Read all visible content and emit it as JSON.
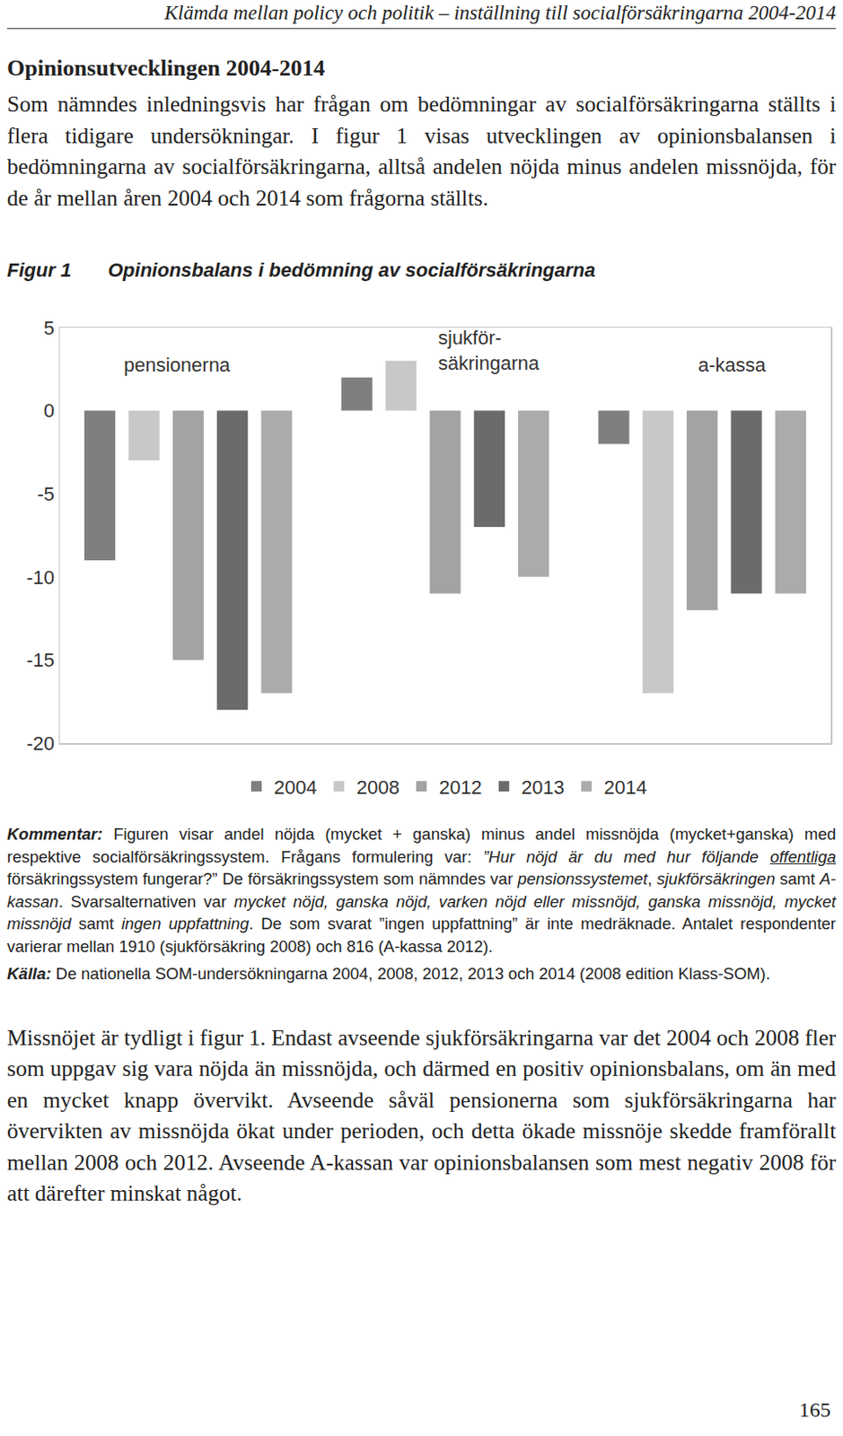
{
  "header": "Klämda mellan policy och politik – inställning till socialförsäkringarna 2004-2014",
  "heading": "Opinionsutvecklingen 2004-2014",
  "intro": "Som nämndes inledningsvis har frågan om bedömningar av socialförsäkringarna ställts i flera tidigare undersökningar. I figur 1 visas utvecklingen av opinionsbalansen i bedömningarna av socialförsäkringarna, alltså andelen nöjda minus andelen missnöjda, för de år mellan åren 2004 och 2014 som frågorna ställts.",
  "figure_label": "Figur 1",
  "chart_data": {
    "type": "bar",
    "title": "Opinionsbalans i bedömning av socialförsäkringarna",
    "categories": [
      "pensionerna",
      "sjukför-\nsäkringarna",
      "a-kassa"
    ],
    "series": [
      {
        "name": "2004",
        "color": "#7f7f7f",
        "values": [
          -9,
          2,
          -2
        ]
      },
      {
        "name": "2008",
        "color": "#c8c8c8",
        "values": [
          -3,
          3,
          -17
        ]
      },
      {
        "name": "2012",
        "color": "#a3a3a3",
        "values": [
          -15,
          -11,
          -12
        ]
      },
      {
        "name": "2013",
        "color": "#6b6b6b",
        "values": [
          -18,
          -7,
          -11
        ]
      },
      {
        "name": "2014",
        "color": "#ababab",
        "values": [
          -17,
          -10,
          -11
        ]
      }
    ],
    "ylim": [
      -20,
      5
    ],
    "yticks": [
      -20,
      -15,
      -10,
      -5,
      0,
      5
    ],
    "grid": false,
    "legend": "bottom",
    "tick_labels": "y"
  },
  "comment": [
    {
      "text": "Kommentar:",
      "style": "bold-italic"
    },
    {
      "text": " Figuren visar andel nöjda (mycket + ganska) minus andel missnöjda (mycket+ganska) med respektive socialförsäkringssystem. Frågans formulering var: ",
      "style": "plain"
    },
    {
      "text": "”Hur nöjd är du med hur följande ",
      "style": "italic"
    },
    {
      "text": "offentliga",
      "style": "italic-underline"
    },
    {
      "text": " försäkringssystem fungerar?”",
      "style": "plain"
    },
    {
      "text": " De försäkringssystem som nämndes var ",
      "style": "plain"
    },
    {
      "text": "pensionssystemet",
      "style": "italic"
    },
    {
      "text": ", ",
      "style": "plain"
    },
    {
      "text": "sjukförsäkringen",
      "style": "italic"
    },
    {
      "text": " samt ",
      "style": "plain"
    },
    {
      "text": "A-kassan",
      "style": "italic"
    },
    {
      "text": ". Svarsalternativen var ",
      "style": "plain"
    },
    {
      "text": "mycket nöjd, ganska nöjd, varken nöjd eller missnöjd, ganska missnöjd, mycket missnöjd",
      "style": "italic"
    },
    {
      "text": " samt ",
      "style": "plain"
    },
    {
      "text": "ingen uppfattning",
      "style": "italic"
    },
    {
      "text": ". De som svarat ”ingen uppfattning” är inte medräknade. Antalet respondenter varierar mellan 1910 (sjukförsäkring 2008) och 816 (A-kassa 2012).",
      "style": "plain"
    }
  ],
  "source": [
    {
      "text": "Källa:",
      "style": "bold-italic"
    },
    {
      "text": " De nationella SOM-undersökningarna 2004, 2008, 2012, 2013 och 2014 (2008 edition Klass-SOM).",
      "style": "plain"
    }
  ],
  "body": "Missnöjet är tydligt i figur 1. Endast avseende sjukförsäkringarna var det 2004 och 2008 fler som uppgav sig vara nöjda än missnöjda, och därmed en positiv opinionsbalans, om än med en mycket knapp övervikt. Avseende såväl pensionerna som sjukförsäkringarna har övervikten av missnöjda ökat under perioden, och detta ökade missnöje skedde framförallt mellan 2008 och 2012. Avseende A-kassan var opinionsbalansen som mest negativ 2008 för att därefter minskat något.",
  "page_number": "165"
}
